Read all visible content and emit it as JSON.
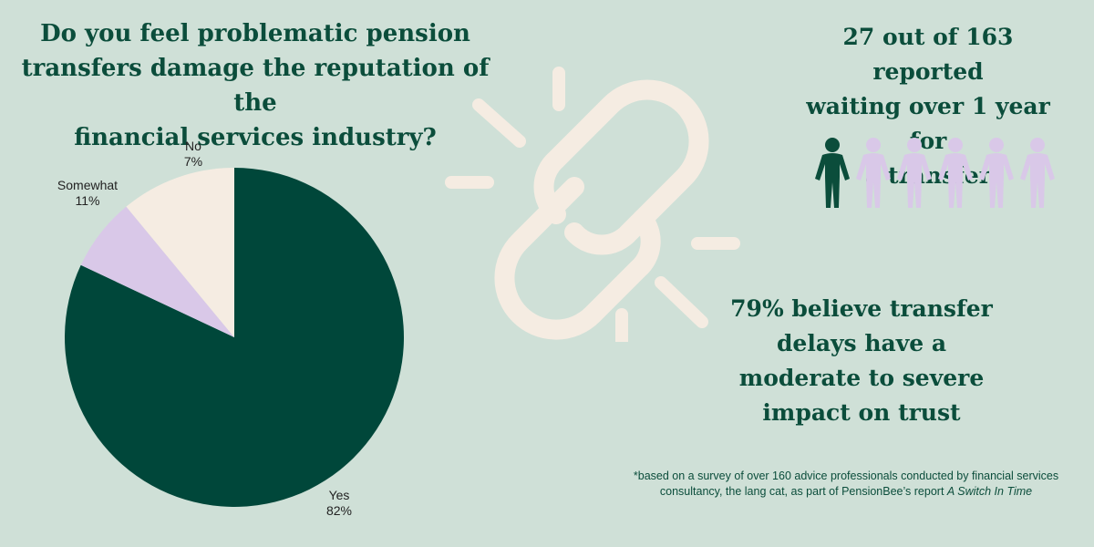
{
  "question": {
    "lines": [
      "Do you feel problematic pension",
      "transfers damage the reputation of the",
      "financial services industry?"
    ]
  },
  "chart_data": {
    "type": "pie",
    "slices": [
      {
        "label": "Yes",
        "value": 82,
        "value_label": "82%",
        "color": "#00473a"
      },
      {
        "label": "No",
        "value": 7,
        "value_label": "7%",
        "color": "#d9c8e8"
      },
      {
        "label": "Somewhat",
        "value": 11,
        "value_label": "11%",
        "color": "#f5ece2"
      }
    ],
    "title": "Do you feel problematic pension transfers damage the reputation of the financial services industry?"
  },
  "stat_waiting": {
    "lines": [
      "27 out of 163 reported",
      "waiting over 1 year for",
      "a transfer"
    ]
  },
  "people_icons": {
    "icon": "person-icon",
    "highlighted": 1,
    "total": 6,
    "highlight_color": "#0b4d3b",
    "other_color": "#d9c8e8"
  },
  "stat_trust": {
    "lines": [
      "79% believe transfer",
      "delays have a",
      "moderate to severe",
      "impact on trust"
    ]
  },
  "footnote": {
    "text": "*based on a survey of over 160 advice professionals conducted by financial services consultancy, the lang cat, as part of PensionBee’s report ",
    "report_title": "A Switch In Time"
  },
  "colors": {
    "background": "#cfe0d7",
    "text": "#0b4d3b",
    "broken_link": "#f5ece2"
  }
}
